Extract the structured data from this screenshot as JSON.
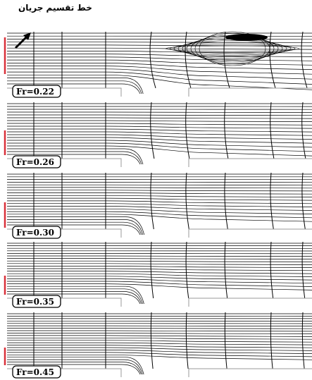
{
  "annotation": {
    "label": "خط تقسیم جریان"
  },
  "panels": [
    {
      "label": "Fr=0.22"
    },
    {
      "label": "Fr=0.26"
    },
    {
      "label": "Fr=0.30"
    },
    {
      "label": "Fr=0.35"
    },
    {
      "label": "Fr=0.45"
    }
  ],
  "colors": {
    "lines": "#000000",
    "marker": "#d9303a",
    "background": "#ffffff",
    "walls": "#9a9a9a"
  }
}
